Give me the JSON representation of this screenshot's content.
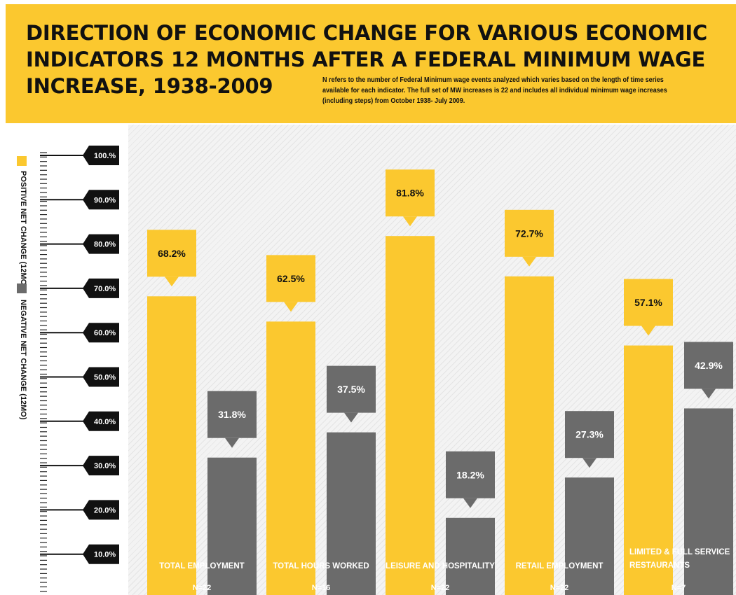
{
  "title_lines": [
    "DIRECTION OF ECONOMIC CHANGE FOR VARIOUS ECONOMIC",
    "INDICATORS 12 MONTHS AFTER A FEDERAL MINIMUM WAGE",
    "INCREASE, 1938-2009"
  ],
  "note_lead": "N",
  "note_text": " refers to the number of Federal Minimum wage events analyzed which varies based on the length of time series available for each indicator. The full set of MW increases is 22 and includes all individual minimum wage increases (including steps) from October 1938- July 2009.",
  "colors": {
    "positive": "#fbc82f",
    "negative": "#6b6b6b",
    "header": "#fbc82f",
    "tick_flag": "#111111"
  },
  "chart_data": {
    "type": "bar",
    "title": "DIRECTION OF ECONOMIC CHANGE FOR VARIOUS ECONOMIC INDICATORS 12 MONTHS AFTER A FEDERAL MINIMUM WAGE INCREASE, 1938-2009",
    "categories": [
      "TOTAL EMPLOYMENT",
      "TOTAL HOURS WORKED",
      "LEISURE AND HOSPITALITY",
      "RETAIL EMPLOYMENT",
      "LIMITED & FULL SERVICE RESTAURANTS"
    ],
    "category_lines": [
      [
        "TOTAL EMPLOYMENT"
      ],
      [
        "TOTAL HOURS WORKED"
      ],
      [
        "LEISURE AND HOSPITALITY"
      ],
      [
        "RETAIL EMPLOYMENT"
      ],
      [
        "LIMITED & FULL SERVICE",
        "RESTAURANTS"
      ]
    ],
    "n_labels": [
      "N=22",
      "N=16",
      "N=22",
      "N=22",
      "N=7"
    ],
    "series": [
      {
        "name": "POSITIVE NET CHANGE (12MO)",
        "values": [
          68.2,
          62.5,
          81.8,
          72.7,
          57.1
        ],
        "labels": [
          "68.2%",
          "62.5%",
          "81.8%",
          "72.7%",
          "57.1%"
        ]
      },
      {
        "name": "NEGATIVE NET CHANGE (12MO)",
        "values": [
          31.8,
          37.5,
          18.2,
          27.3,
          42.9
        ],
        "labels": [
          "31.8%",
          "37.5%",
          "18.2%",
          "27.3%",
          "42.9%"
        ]
      }
    ],
    "y_ticks": [
      100,
      90,
      80,
      70,
      60,
      50,
      40,
      30,
      20,
      10
    ],
    "y_tick_labels": [
      "100.%",
      "90.0%",
      "80.0%",
      "70.0%",
      "60.0%",
      "50.0%",
      "40.0%",
      "30.0%",
      "20.0%",
      "10.0%"
    ],
    "ylim": [
      0,
      100
    ],
    "legend_position": "left"
  }
}
